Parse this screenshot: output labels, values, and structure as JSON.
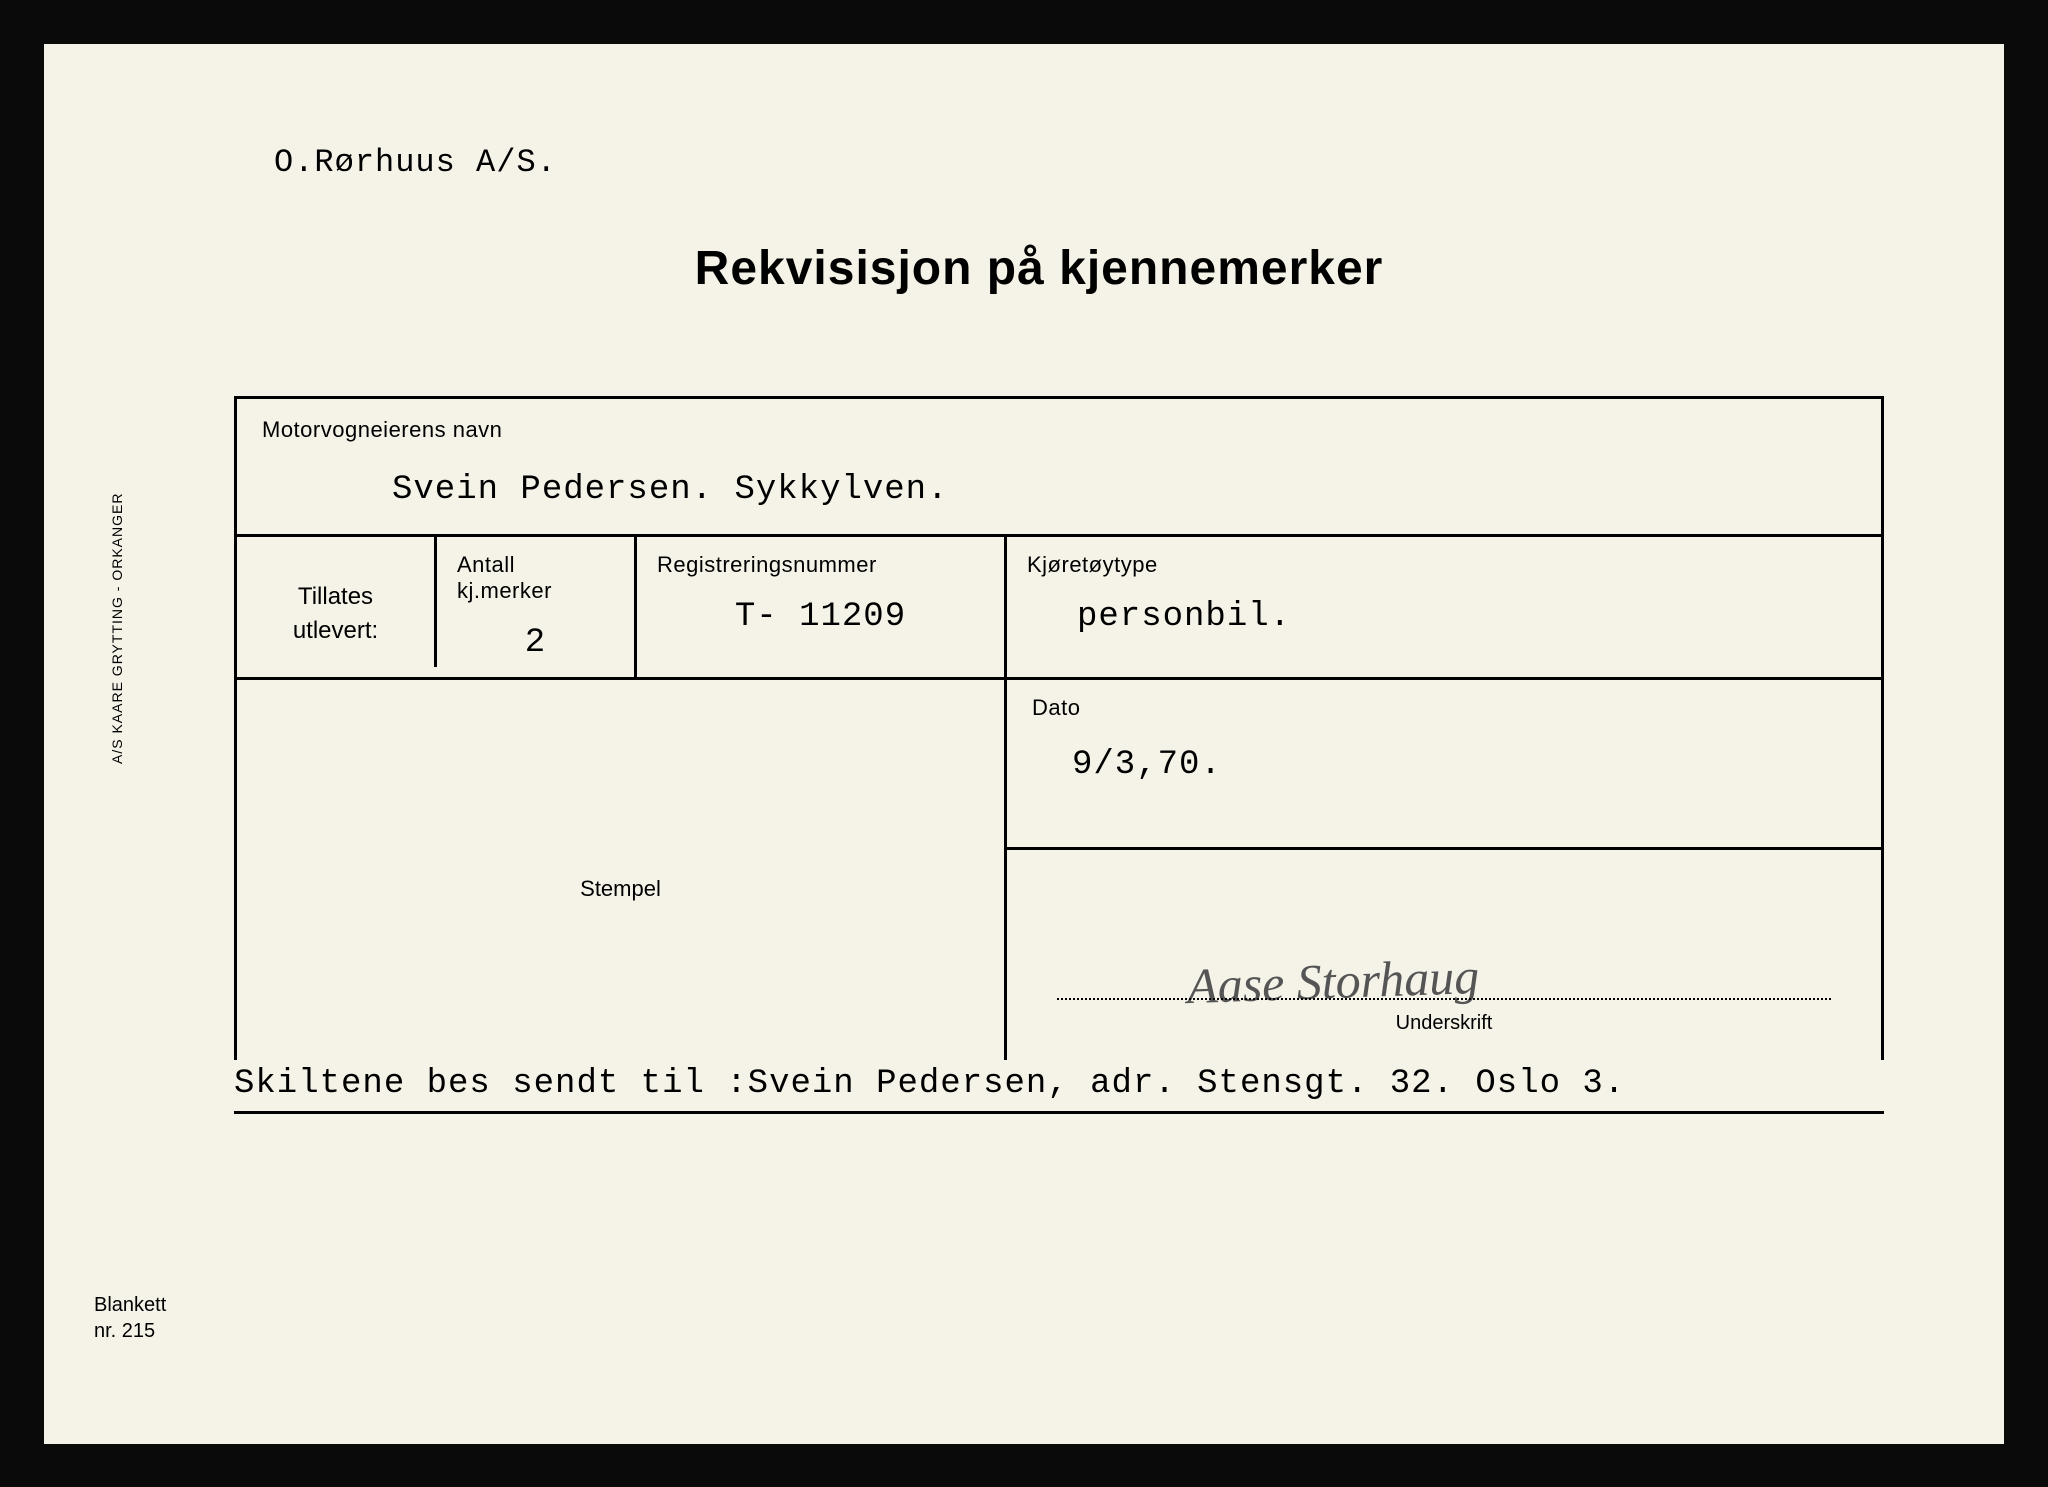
{
  "company_name": "O.Rørhuus A/S.",
  "title": "Rekvisisjon på kjennemerker",
  "owner": {
    "label": "Motorvogneierens navn",
    "value": "Svein Pedersen. Sykkylven."
  },
  "tillates": {
    "label_line1": "Tillates",
    "label_line2": "utlevert:"
  },
  "antall": {
    "label": "Antall kj.merker",
    "value": "2"
  },
  "regnr": {
    "label": "Registreringsnummer",
    "value": "T- 11209"
  },
  "type": {
    "label": "Kjøretøytype",
    "value": "personbil."
  },
  "stempel": {
    "label": "Stempel"
  },
  "dato": {
    "label": "Dato",
    "value": "9/3,70."
  },
  "underskrift": {
    "label": "Underskrift",
    "signature": "Aase Storhaug"
  },
  "bottom_note": "Skiltene bes sendt til :Svein Pedersen, adr.  Stensgt. 32. Oslo 3.",
  "side_text": "A/S KAARE GRYTTING - ORKANGER",
  "blankett": {
    "line1": "Blankett",
    "line2": "nr. 215"
  },
  "colors": {
    "paper_bg": "#f5f2e8",
    "frame_bg": "#0a0a0a",
    "border": "#000000",
    "signature": "#555555"
  }
}
